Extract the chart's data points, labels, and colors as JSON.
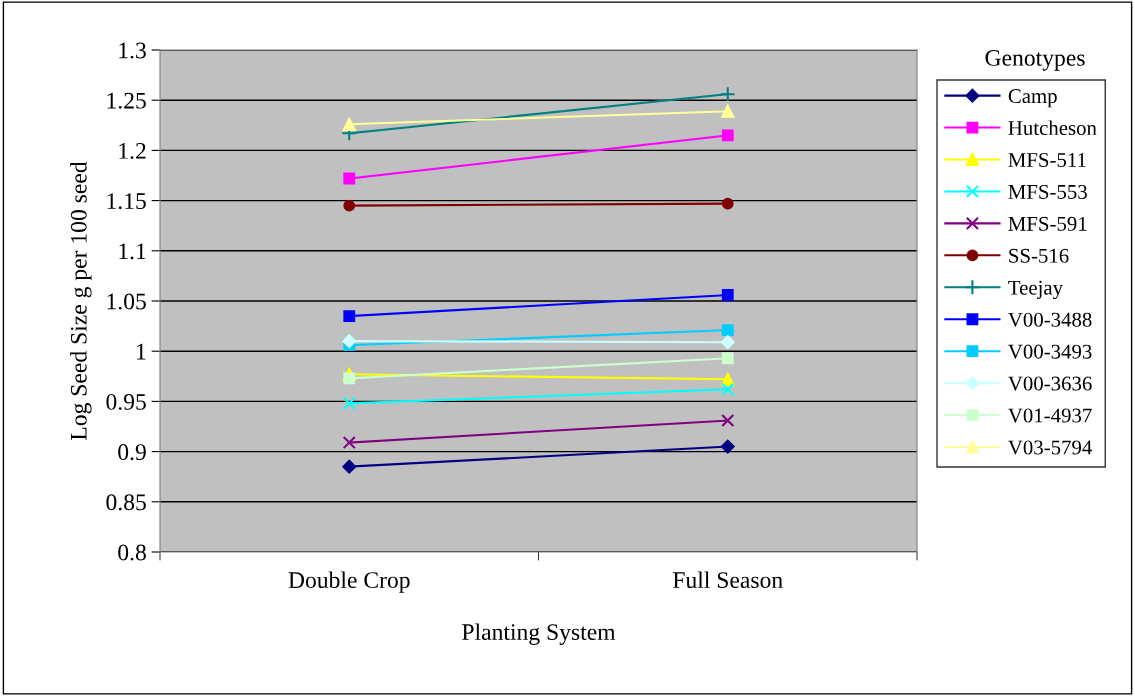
{
  "chart_data": {
    "type": "line",
    "xlabel": "Planting System",
    "ylabel": "Log Seed Size g per 100 seed",
    "legend_title": "Genotypes",
    "categories": [
      "Double Crop",
      "Full Season"
    ],
    "series": [
      {
        "name": "Camp",
        "color": "#000080",
        "marker": "diamond",
        "values": [
          0.885,
          0.905
        ]
      },
      {
        "name": "Hutcheson",
        "color": "#ff00ff",
        "marker": "square",
        "values": [
          1.172,
          1.215
        ]
      },
      {
        "name": "MFS-511",
        "color": "#ffff00",
        "marker": "triangle",
        "values": [
          0.977,
          0.972
        ]
      },
      {
        "name": "MFS-553",
        "color": "#00ffff",
        "marker": "cross",
        "values": [
          0.948,
          0.962
        ]
      },
      {
        "name": "MFS-591",
        "color": "#800080",
        "marker": "cross",
        "values": [
          0.909,
          0.931
        ]
      },
      {
        "name": "SS-516",
        "color": "#800000",
        "marker": "circle",
        "values": [
          1.145,
          1.147
        ]
      },
      {
        "name": "Teejay",
        "color": "#008080",
        "marker": "plus",
        "values": [
          1.217,
          1.256
        ]
      },
      {
        "name": "V00-3488",
        "color": "#0000ff",
        "marker": "square",
        "values": [
          1.035,
          1.056
        ]
      },
      {
        "name": "V00-3493",
        "color": "#00ccff",
        "marker": "square",
        "values": [
          1.006,
          1.021
        ]
      },
      {
        "name": "V00-3636",
        "color": "#ccffff",
        "marker": "diamond",
        "values": [
          1.01,
          1.009
        ]
      },
      {
        "name": "V01-4937",
        "color": "#ccffcc",
        "marker": "square",
        "values": [
          0.973,
          0.993
        ]
      },
      {
        "name": "V03-5794",
        "color": "#ffff99",
        "marker": "triangle",
        "values": [
          1.226,
          1.239
        ]
      }
    ],
    "ylim": [
      0.8,
      1.3
    ],
    "yticks": [
      0.8,
      0.85,
      0.9,
      0.95,
      1,
      1.05,
      1.1,
      1.15,
      1.2,
      1.25,
      1.3
    ],
    "grid": "y",
    "legend": "right"
  }
}
